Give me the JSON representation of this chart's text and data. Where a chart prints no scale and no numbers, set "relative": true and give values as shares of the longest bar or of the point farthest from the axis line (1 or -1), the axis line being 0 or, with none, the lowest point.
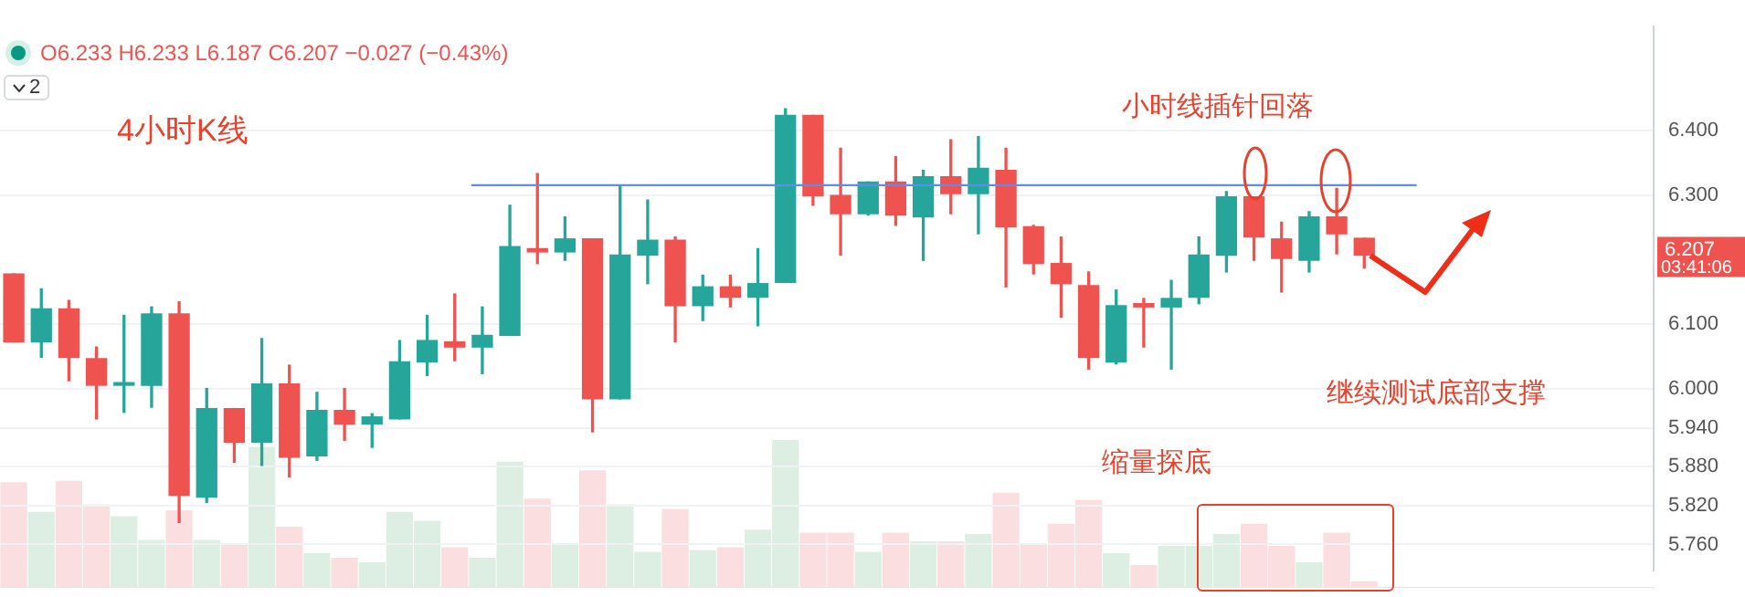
{
  "chart_data": [
    {
      "type": "candlestick",
      "categories": [
        null,
        null,
        null,
        null,
        null,
        null,
        null,
        null,
        null,
        null,
        null,
        null,
        null,
        null,
        null,
        null,
        null,
        null,
        null,
        null,
        null,
        null,
        null,
        null,
        null,
        null,
        null,
        null,
        null,
        null,
        null,
        null,
        null,
        null,
        null,
        null,
        null,
        null,
        null,
        null,
        null,
        null,
        null,
        null,
        null,
        null,
        null,
        null,
        null,
        null,
        null,
        null,
        null,
        null,
        null,
        null,
        null,
        null,
        null,
        null
      ],
      "ohlc": [
        [
          6.178,
          6.178,
          6.073,
          6.073
        ],
        [
          6.073,
          6.155,
          6.049,
          6.124
        ],
        [
          6.124,
          6.137,
          6.013,
          6.049
        ],
        [
          6.047,
          6.065,
          5.954,
          6.006
        ],
        [
          6.006,
          6.114,
          5.964,
          6.01
        ],
        [
          6.006,
          6.127,
          5.972,
          6.116
        ],
        [
          6.116,
          6.135,
          5.794,
          5.836
        ],
        [
          5.833,
          6.001,
          5.825,
          5.97
        ],
        [
          5.97,
          5.97,
          5.887,
          5.918
        ],
        [
          5.918,
          6.078,
          5.882,
          6.008
        ],
        [
          6.008,
          6.037,
          5.864,
          5.895
        ],
        [
          5.897,
          5.995,
          5.89,
          5.967
        ],
        [
          5.967,
          6.001,
          5.921,
          5.946
        ],
        [
          5.946,
          5.962,
          5.91,
          5.957
        ],
        [
          5.954,
          6.075,
          5.954,
          6.042
        ],
        [
          6.042,
          6.114,
          6.021,
          6.075
        ],
        [
          6.073,
          6.147,
          6.044,
          6.065
        ],
        [
          6.065,
          6.127,
          6.024,
          6.083
        ],
        [
          6.083,
          6.284,
          6.083,
          6.22
        ],
        [
          6.217,
          6.333,
          6.194,
          6.212
        ],
        [
          6.212,
          6.266,
          6.199,
          6.232
        ],
        [
          6.232,
          6.232,
          5.934,
          5.985
        ],
        [
          5.985,
          6.315,
          5.985,
          6.207
        ],
        [
          6.207,
          6.292,
          6.163,
          6.23
        ],
        [
          6.23,
          6.235,
          6.073,
          6.129
        ],
        [
          6.129,
          6.176,
          6.106,
          6.158
        ],
        [
          6.158,
          6.176,
          6.127,
          6.142
        ],
        [
          6.142,
          6.217,
          6.098,
          6.163
        ],
        [
          6.165,
          6.433,
          6.165,
          6.423
        ],
        [
          6.423,
          6.423,
          6.284,
          6.299
        ],
        [
          6.299,
          6.372,
          6.207,
          6.271
        ],
        [
          6.271,
          6.32,
          6.269,
          6.32
        ],
        [
          6.32,
          6.359,
          6.253,
          6.269
        ],
        [
          6.266,
          6.338,
          6.199,
          6.328
        ],
        [
          6.328,
          6.385,
          6.271,
          6.302
        ],
        [
          6.302,
          6.39,
          6.24,
          6.341
        ],
        [
          6.338,
          6.372,
          6.158,
          6.251
        ],
        [
          6.251,
          6.253,
          6.178,
          6.194
        ],
        [
          6.194,
          6.235,
          6.111,
          6.163
        ],
        [
          6.16,
          6.181,
          6.031,
          6.049
        ],
        [
          6.042,
          6.153,
          6.039,
          6.129
        ],
        [
          6.132,
          6.14,
          6.065,
          6.127
        ],
        [
          6.127,
          6.168,
          6.031,
          6.14
        ],
        [
          6.142,
          6.235,
          6.132,
          6.207
        ],
        [
          6.207,
          6.305,
          6.181,
          6.297
        ],
        [
          6.297,
          6.297,
          6.199,
          6.235
        ],
        [
          6.232,
          6.258,
          6.15,
          6.202
        ],
        [
          6.199,
          6.274,
          6.181,
          6.266
        ],
        [
          6.266,
          6.31,
          6.209,
          6.24
        ],
        [
          6.233,
          6.233,
          6.187,
          6.207
        ],
        null,
        null,
        null,
        null,
        null,
        null,
        null,
        null,
        null,
        null
      ],
      "colors": [
        "#ef5350",
        "#26a69a",
        "#ef5350",
        "#ef5350",
        "#26a69a",
        "#26a69a",
        "#ef5350",
        "#26a69a",
        "#ef5350",
        "#26a69a",
        "#ef5350",
        "#26a69a",
        "#ef5350",
        "#26a69a",
        "#26a69a",
        "#26a69a",
        "#ef5350",
        "#26a69a",
        "#26a69a",
        "#ef5350",
        "#26a69a",
        "#ef5350",
        "#26a69a",
        "#26a69a",
        "#ef5350",
        "#26a69a",
        "#ef5350",
        "#26a69a",
        "#26a69a",
        "#ef5350",
        "#ef5350",
        "#26a69a",
        "#ef5350",
        "#26a69a",
        "#ef5350",
        "#26a69a",
        "#ef5350",
        "#ef5350",
        "#ef5350",
        "#ef5350",
        "#26a69a",
        "#ef5350",
        "#26a69a",
        "#26a69a",
        "#26a69a",
        "#ef5350",
        "#ef5350",
        "#26a69a",
        "#ef5350",
        "#ef5350",
        null,
        null,
        null,
        null,
        null,
        null,
        null,
        null,
        null,
        null
      ],
      "ylim": [
        5.72,
        6.56
      ],
      "yticks": [
        {
          "value": 6.4,
          "label": "6.400"
        },
        {
          "value": 6.3,
          "label": "6.300"
        },
        {
          "value": 6.1,
          "label": "6.100"
        },
        {
          "value": 6.0,
          "label": "6.000"
        },
        {
          "value": 5.94,
          "label": "5.940"
        },
        {
          "value": 5.88,
          "label": "5.880"
        },
        {
          "value": 5.82,
          "label": "5.820"
        },
        {
          "value": 5.76,
          "label": "5.760"
        }
      ],
      "tick_labels": "y",
      "grid": "y",
      "ref_lines": [
        {
          "axis": "y",
          "value": 6.315,
          "color": "#5b8def"
        }
      ],
      "annotations": [
        "2",
        "O6.233 H6.233 L6.187 C6.207 −0.027 (−0.43%)",
        "4小时K线",
        "小时线插针回落",
        "缩量探底",
        "继续测试底部支撑",
        "6.207",
        "03:41:06"
      ]
    },
    {
      "type": "bar",
      "relative": true,
      "categories": [
        null,
        null,
        null,
        null,
        null,
        null,
        null,
        null,
        null,
        null,
        null,
        null,
        null,
        null,
        null,
        null,
        null,
        null,
        null,
        null,
        null,
        null,
        null,
        null,
        null,
        null,
        null,
        null,
        null,
        null,
        null,
        null,
        null,
        null,
        null,
        null,
        null,
        null,
        null,
        null,
        null,
        null,
        null,
        null,
        null,
        null,
        null,
        null,
        null,
        null,
        null,
        null,
        null,
        null,
        null,
        null,
        null,
        null,
        null,
        null
      ],
      "values": [
        0.71,
        0.51,
        0.72,
        0.56,
        0.48,
        0.32,
        0.52,
        0.32,
        0.29,
        0.95,
        0.41,
        0.23,
        0.2,
        0.17,
        0.51,
        0.45,
        0.27,
        0.2,
        0.85,
        0.6,
        0.29,
        0.79,
        0.56,
        0.24,
        0.53,
        0.25,
        0.27,
        0.39,
        1,
        0.37,
        0.37,
        0.24,
        0.37,
        0.31,
        0.31,
        0.36,
        0.64,
        0.29,
        0.43,
        0.59,
        0.23,
        0.15,
        0.28,
        0.28,
        0.36,
        0.43,
        0.28,
        0.17,
        0.37,
        0.04,
        null,
        null,
        null,
        null,
        null,
        null,
        null,
        null,
        null,
        null
      ],
      "colors": [
        "#fbdfe0",
        "#dcefe2",
        "#fbdfe0",
        "#fbdfe0",
        "#dcefe2",
        "#dcefe2",
        "#fbdfe0",
        "#dcefe2",
        "#fbdfe0",
        "#dcefe2",
        "#fbdfe0",
        "#dcefe2",
        "#fbdfe0",
        "#dcefe2",
        "#dcefe2",
        "#dcefe2",
        "#fbdfe0",
        "#dcefe2",
        "#dcefe2",
        "#fbdfe0",
        "#dcefe2",
        "#fbdfe0",
        "#dcefe2",
        "#dcefe2",
        "#fbdfe0",
        "#dcefe2",
        "#fbdfe0",
        "#dcefe2",
        "#dcefe2",
        "#fbdfe0",
        "#fbdfe0",
        "#dcefe2",
        "#fbdfe0",
        "#dcefe2",
        "#fbdfe0",
        "#dcefe2",
        "#fbdfe0",
        "#fbdfe0",
        "#fbdfe0",
        "#fbdfe0",
        "#dcefe2",
        "#fbdfe0",
        "#dcefe2",
        "#dcefe2",
        "#dcefe2",
        "#fbdfe0",
        "#fbdfe0",
        "#dcefe2",
        "#fbdfe0",
        "#fbdfe0",
        null,
        null,
        null,
        null,
        null,
        null,
        null,
        null,
        null,
        null
      ]
    }
  ]
}
